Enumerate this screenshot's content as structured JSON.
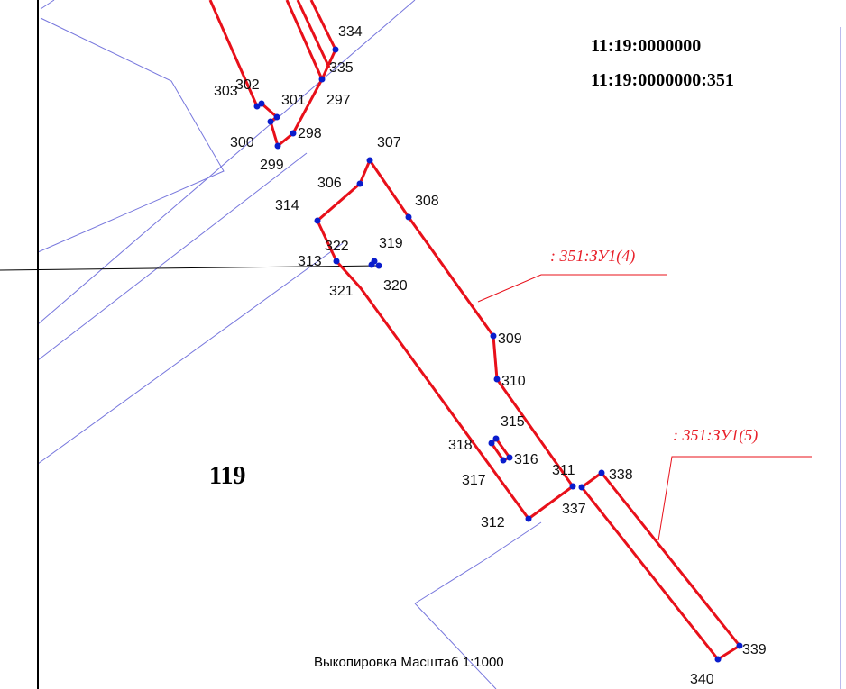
{
  "cadastral_numbers": [
    "11:19:0000000",
    "11:19:0000000:351"
  ],
  "points": [
    "334",
    "335",
    "297",
    "303",
    "302",
    "301",
    "300",
    "298",
    "299",
    "307",
    "306",
    "308",
    "314",
    "319",
    "322",
    "313",
    "321",
    "320",
    "309",
    "310",
    "315",
    "318",
    "316",
    "317",
    "311",
    "338",
    "337",
    "312",
    "339",
    "340"
  ],
  "parcel_labels": [
    ": 351:ЗУ1(4)",
    ": 351:ЗУ1(5)"
  ],
  "block_number": "119",
  "caption": "Выкопировка Масштаб 1:1000"
}
